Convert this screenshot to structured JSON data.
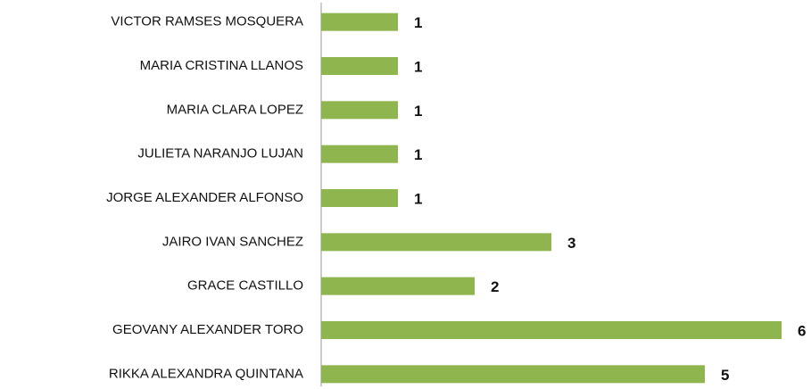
{
  "chart_data": {
    "type": "bar",
    "orientation": "horizontal",
    "categories": [
      "VICTOR RAMSES MOSQUERA",
      "MARIA CRISTINA LLANOS",
      "MARIA CLARA LOPEZ",
      "JULIETA NARANJO LUJAN",
      "JORGE ALEXANDER ALFONSO",
      "JAIRO IVAN SANCHEZ",
      "GRACE CASTILLO",
      "GEOVANY ALEXANDER TORO",
      "RIKKA ALEXANDRA QUINTANA"
    ],
    "values": [
      1,
      1,
      1,
      1,
      1,
      3,
      2,
      6,
      5
    ],
    "color": "#8fb54e",
    "xlim": [
      0,
      6
    ]
  }
}
